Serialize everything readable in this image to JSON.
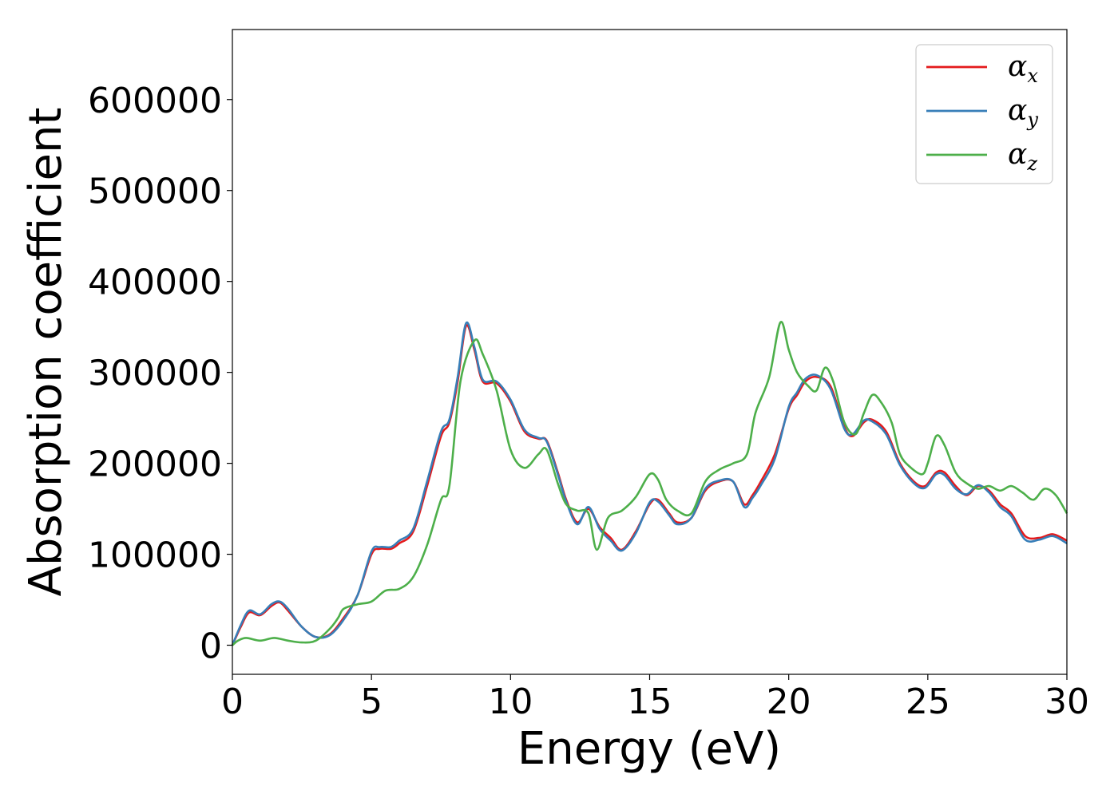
{
  "chart_data": {
    "type": "line",
    "xlabel": "Energy (eV)",
    "ylabel": "Absorption coefficient",
    "xlim": [
      0,
      30
    ],
    "ylim": [
      -32000,
      677000
    ],
    "xticks": [
      0,
      5,
      10,
      15,
      20,
      25,
      30
    ],
    "xtick_labels": [
      "0",
      "5",
      "10",
      "15",
      "20",
      "25",
      "30"
    ],
    "yticks": [
      0,
      100000,
      200000,
      300000,
      400000,
      500000,
      600000
    ],
    "ytick_labels": [
      "0",
      "100000",
      "200000",
      "300000",
      "400000",
      "500000",
      "600000"
    ],
    "grid": false,
    "legend_position": "top-right",
    "series": [
      {
        "name": "αx",
        "legend_base": "α",
        "legend_sub": "x",
        "color": "#e41a1c",
        "x": [
          0,
          0.3,
          0.6,
          1.0,
          1.4,
          1.7,
          2.0,
          2.5,
          3.0,
          3.5,
          4.0,
          4.5,
          5.0,
          5.3,
          5.7,
          6.0,
          6.5,
          7.0,
          7.5,
          7.8,
          8.1,
          8.4,
          8.7,
          9.0,
          9.5,
          10.0,
          10.5,
          11.0,
          11.3,
          11.7,
          12.0,
          12.4,
          12.8,
          13.2,
          13.6,
          14.0,
          14.5,
          15.0,
          15.3,
          15.7,
          16.0,
          16.5,
          17.0,
          17.5,
          18.0,
          18.4,
          18.7,
          19.0,
          19.5,
          20.0,
          20.3,
          20.6,
          21.0,
          21.5,
          22.0,
          22.3,
          22.7,
          23.0,
          23.5,
          24.0,
          24.5,
          24.9,
          25.3,
          25.6,
          26.0,
          26.4,
          26.8,
          27.2,
          27.6,
          28.0,
          28.5,
          29.0,
          29.5,
          30.0
        ],
        "y": [
          0,
          20000,
          36000,
          33000,
          43000,
          47000,
          38000,
          20000,
          9000,
          12000,
          30000,
          55000,
          100000,
          106000,
          106000,
          112000,
          125000,
          175000,
          230000,
          245000,
          290000,
          351000,
          325000,
          290000,
          288000,
          268000,
          235000,
          227000,
          225000,
          190000,
          160000,
          135000,
          150000,
          130000,
          118000,
          105000,
          125000,
          155000,
          160000,
          145000,
          135000,
          140000,
          170000,
          180000,
          180000,
          155000,
          165000,
          180000,
          210000,
          260000,
          275000,
          290000,
          295000,
          285000,
          240000,
          230000,
          245000,
          248000,
          235000,
          200000,
          180000,
          175000,
          190000,
          190000,
          175000,
          165000,
          175000,
          170000,
          155000,
          145000,
          120000,
          118000,
          122000,
          115000
        ]
      },
      {
        "name": "αy",
        "legend_base": "α",
        "legend_sub": "y",
        "color": "#377eb8",
        "x": [
          0,
          0.3,
          0.6,
          1.0,
          1.4,
          1.7,
          2.0,
          2.5,
          3.0,
          3.5,
          4.0,
          4.5,
          5.0,
          5.3,
          5.7,
          6.0,
          6.5,
          7.0,
          7.5,
          7.8,
          8.1,
          8.4,
          8.7,
          9.0,
          9.5,
          10.0,
          10.5,
          11.0,
          11.3,
          11.7,
          12.0,
          12.4,
          12.8,
          13.2,
          13.6,
          14.0,
          14.5,
          15.0,
          15.3,
          15.7,
          16.0,
          16.5,
          17.0,
          17.5,
          18.0,
          18.4,
          18.7,
          19.0,
          19.5,
          20.0,
          20.3,
          20.6,
          21.0,
          21.5,
          22.0,
          22.3,
          22.7,
          23.0,
          23.5,
          24.0,
          24.5,
          24.9,
          25.3,
          25.6,
          26.0,
          26.4,
          26.8,
          27.2,
          27.6,
          28.0,
          28.5,
          29.0,
          29.5,
          30.0
        ],
        "y": [
          0,
          22000,
          38000,
          34000,
          45000,
          48000,
          40000,
          20000,
          9000,
          11000,
          28000,
          55000,
          103000,
          108000,
          108000,
          115000,
          128000,
          180000,
          235000,
          248000,
          295000,
          354000,
          328000,
          292000,
          290000,
          270000,
          237000,
          228000,
          224000,
          188000,
          158000,
          133000,
          152000,
          128000,
          115000,
          104000,
          123000,
          157000,
          158000,
          143000,
          133000,
          140000,
          172000,
          181000,
          180000,
          152000,
          162000,
          176000,
          205000,
          262000,
          278000,
          293000,
          297000,
          282000,
          238000,
          232000,
          247000,
          246000,
          232000,
          198000,
          178000,
          173000,
          188000,
          187000,
          172000,
          166000,
          176000,
          168000,
          152000,
          142000,
          116000,
          116000,
          120000,
          112000
        ]
      },
      {
        "name": "αz",
        "legend_base": "α",
        "legend_sub": "z",
        "color": "#4daf4a",
        "x": [
          0,
          0.2,
          0.5,
          1.0,
          1.5,
          2.0,
          2.5,
          3.0,
          3.5,
          3.8,
          4.0,
          4.5,
          5.0,
          5.5,
          6.0,
          6.5,
          7.0,
          7.5,
          7.8,
          8.2,
          8.7,
          9.0,
          9.5,
          10.0,
          10.5,
          11.0,
          11.3,
          11.7,
          12.0,
          12.4,
          12.8,
          13.1,
          13.5,
          14.0,
          14.5,
          15.0,
          15.3,
          15.6,
          16.0,
          16.5,
          17.0,
          17.5,
          18.0,
          18.5,
          18.8,
          19.3,
          19.7,
          20.0,
          20.3,
          20.7,
          21.0,
          21.3,
          21.6,
          22.0,
          22.4,
          22.7,
          23.0,
          23.3,
          23.7,
          24.0,
          24.4,
          24.8,
          25.0,
          25.3,
          25.6,
          26.0,
          26.4,
          26.8,
          27.2,
          27.6,
          28.0,
          28.4,
          28.8,
          29.2,
          29.6,
          30.0
        ],
        "y": [
          0,
          5000,
          8000,
          5000,
          8000,
          5000,
          3000,
          5000,
          18000,
          30000,
          40000,
          45000,
          48000,
          60000,
          62000,
          75000,
          110000,
          160000,
          175000,
          290000,
          335000,
          320000,
          280000,
          215000,
          195000,
          210000,
          215000,
          178000,
          155000,
          148000,
          145000,
          105000,
          140000,
          148000,
          163000,
          188000,
          182000,
          160000,
          148000,
          145000,
          180000,
          193000,
          200000,
          210000,
          255000,
          295000,
          355000,
          325000,
          300000,
          285000,
          280000,
          305000,
          290000,
          245000,
          232000,
          255000,
          275000,
          268000,
          245000,
          210000,
          195000,
          188000,
          200000,
          230000,
          220000,
          190000,
          178000,
          172000,
          175000,
          170000,
          175000,
          168000,
          160000,
          172000,
          165000,
          145000
        ]
      }
    ]
  }
}
